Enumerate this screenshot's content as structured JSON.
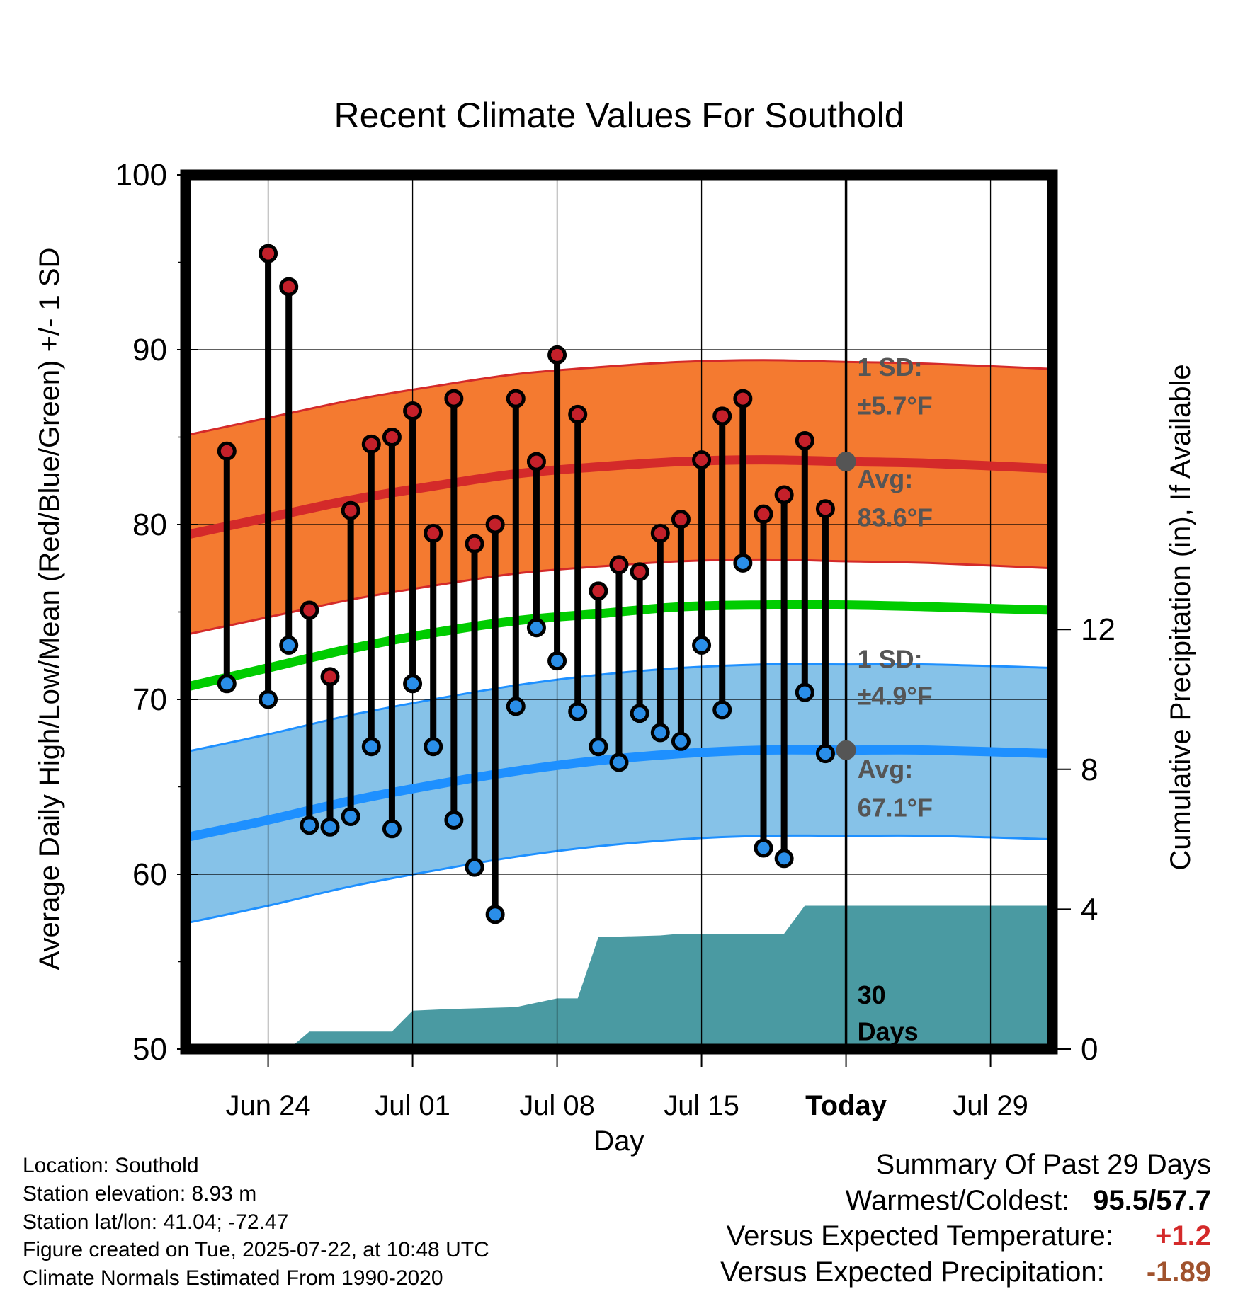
{
  "chart_data": {
    "type": "line",
    "title": "Recent Climate Values For Southold",
    "xlabel": "Day",
    "ylabel": "Average Daily High/Low/Mean (Red/Blue/Green) +/- 1 SD",
    "y2label": "Cumulative Precipitation (in), If Available",
    "ylim": [
      50,
      100
    ],
    "y2lim": [
      0,
      25
    ],
    "yticks": [
      50,
      60,
      70,
      80,
      90,
      100
    ],
    "y2ticks": [
      0,
      4,
      8,
      12
    ],
    "xlim": [
      "Jun 20",
      "Aug 01"
    ],
    "x_tick_labels": [
      {
        "date": "Jun 24",
        "label": "Jun 24"
      },
      {
        "date": "Jul 01",
        "label": "Jul 01"
      },
      {
        "date": "Jul 08",
        "label": "Jul 08"
      },
      {
        "date": "Jul 15",
        "label": "Jul 15"
      },
      {
        "date": "Jul 22",
        "label": "Today"
      },
      {
        "date": "Jul 29",
        "label": "Jul 29"
      }
    ],
    "grid": true,
    "today": "Jul 22",
    "daily_observations": {
      "dates": [
        "Jun 22",
        "Jun 24",
        "Jun 25",
        "Jun 26",
        "Jun 27",
        "Jun 28",
        "Jun 29",
        "Jun 30",
        "Jul 01",
        "Jul 02",
        "Jul 03",
        "Jul 04",
        "Jul 05",
        "Jul 06",
        "Jul 07",
        "Jul 08",
        "Jul 09",
        "Jul 10",
        "Jul 11",
        "Jul 12",
        "Jul 13",
        "Jul 14",
        "Jul 15",
        "Jul 16",
        "Jul 17",
        "Jul 18",
        "Jul 19",
        "Jul 20",
        "Jul 21"
      ],
      "high": [
        84.2,
        95.5,
        93.6,
        75.1,
        71.3,
        80.8,
        84.6,
        85.0,
        86.5,
        79.5,
        87.2,
        78.9,
        80.0,
        87.2,
        83.6,
        89.7,
        86.3,
        76.2,
        77.7,
        77.3,
        79.5,
        80.3,
        83.7,
        86.2,
        87.2,
        80.6,
        81.7,
        84.8,
        80.9
      ],
      "low": [
        70.9,
        70.0,
        73.1,
        62.8,
        62.7,
        63.3,
        67.3,
        62.6,
        70.9,
        67.3,
        63.1,
        60.4,
        57.7,
        69.6,
        74.1,
        72.2,
        69.3,
        67.3,
        66.4,
        69.2,
        68.1,
        67.6,
        73.1,
        69.4,
        77.8,
        61.5,
        60.9,
        70.4,
        66.9
      ]
    },
    "normals": {
      "dates": [
        "Jun 20",
        "Jun 24",
        "Jun 28",
        "Jul 02",
        "Jul 06",
        "Jul 10",
        "Jul 14",
        "Jul 18",
        "Jul 22",
        "Jul 26",
        "Aug 01"
      ],
      "high_avg": [
        79.4,
        80.4,
        81.4,
        82.2,
        82.9,
        83.3,
        83.6,
        83.7,
        83.6,
        83.5,
        83.2
      ],
      "high_sd": 5.7,
      "mean_avg": [
        70.7,
        71.8,
        72.9,
        73.8,
        74.5,
        74.9,
        75.3,
        75.4,
        75.4,
        75.3,
        75.1
      ],
      "low_avg": [
        62.1,
        63.1,
        64.2,
        65.1,
        65.9,
        66.5,
        66.9,
        67.1,
        67.1,
        67.1,
        66.9
      ],
      "low_sd": 4.9
    },
    "precipitation_cumulative": {
      "dates": [
        "Jun 20",
        "Jun 25",
        "Jun 26",
        "Jun 30",
        "Jul 01",
        "Jul 03",
        "Jul 06",
        "Jul 08",
        "Jul 09",
        "Jul 10",
        "Jul 13",
        "Jul 14",
        "Jul 17",
        "Jul 18",
        "Jul 19",
        "Jul 20",
        "Aug 01"
      ],
      "values": [
        0,
        0,
        0.5,
        0.5,
        1.1,
        1.15,
        1.2,
        1.45,
        1.45,
        3.2,
        3.25,
        3.3,
        3.3,
        3.3,
        3.3,
        4.1,
        4.1
      ]
    },
    "annotations": {
      "high_sd_label": "1 SD:",
      "high_sd_value": "±5.7°F",
      "high_avg_label": "Avg:",
      "high_avg_value": "83.6°F",
      "low_sd_label": "1 SD:",
      "low_sd_value": "±4.9°F",
      "low_avg_label": "Avg:",
      "low_avg_value": "67.1°F",
      "days_line1": "30",
      "days_line2": "Days"
    },
    "colors": {
      "high_band": "#f47a30",
      "high_line": "#d42a2a",
      "mean_line": "#00cc00",
      "low_band": "#86c2e8",
      "low_line": "#1e90ff",
      "precip": "#4a9aa2",
      "high_dot": "#c4202a",
      "low_dot": "#2a8ee8",
      "avg_marker": "#555555",
      "annotation": "#555555"
    }
  },
  "info": {
    "location": "Location: Southold",
    "elevation": "Station elevation: 8.93 m",
    "latlon": "Station lat/lon: 41.04; -72.47",
    "created": "Figure created on Tue, 2025-07-22, at 10:48 UTC",
    "normals": "Climate Normals Estimated From 1990-2020"
  },
  "summary": {
    "title": "Summary Of Past 29 Days",
    "warmest_coldest_label": "Warmest/Coldest:",
    "warmest_coldest_value": "95.5/57.7",
    "temp_label": "Versus Expected Temperature:",
    "temp_value": "+1.2",
    "temp_color": "#d42a2a",
    "precip_label": "Versus Expected Precipitation:",
    "precip_value": "-1.89",
    "precip_color": "#a0522d"
  }
}
